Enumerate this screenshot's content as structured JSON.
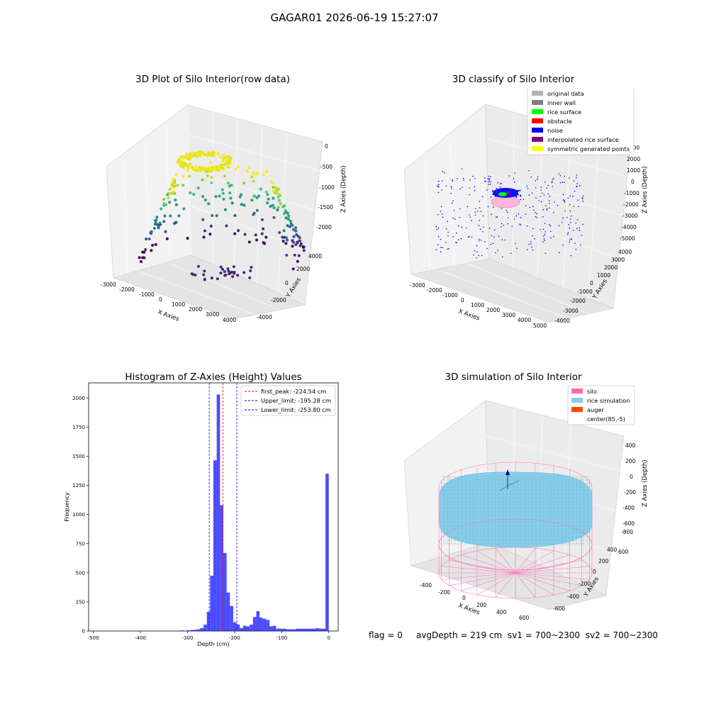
{
  "suptitle": "GAGAR01 2026-06-19 15:27:07",
  "panels": {
    "raw": {
      "title": "3D Plot of Silo Interior(row data)",
      "xlabel": "X Axies",
      "ylabel": "Y Axies",
      "zlabel": "Z Axies (Depth)",
      "xticks": [
        "-3000",
        "-2000",
        "-1000",
        "0",
        "1000",
        "2000",
        "3000",
        "4000"
      ],
      "yticks": [
        "-4000",
        "-2000",
        "0",
        "2000",
        "4000"
      ],
      "zticks": [
        "0",
        "-500",
        "-1000",
        "-1500",
        "-2000"
      ]
    },
    "classify": {
      "title": "3D classify of Silo Interior",
      "xlabel": "X Axies",
      "ylabel": "Y Axies",
      "zlabel": "Z Axies (Depth)",
      "xticks": [
        "-3000",
        "-2000",
        "-1000",
        "0",
        "1000",
        "2000",
        "3000",
        "4000",
        "5000"
      ],
      "yticks": [
        "-4000",
        "-3000",
        "-2000",
        "-1000",
        "0",
        "1000",
        "2000",
        "3000",
        "4000"
      ],
      "zticks": [
        "3000",
        "2000",
        "1000",
        "0",
        "-1000",
        "-2000",
        "-3000",
        "-4000",
        "-5000"
      ],
      "legend": [
        {
          "label": "original data",
          "color": "#b3b3b3"
        },
        {
          "label": "inner wall",
          "color": "#808080"
        },
        {
          "label": "rice surface",
          "color": "#00ff00"
        },
        {
          "label": "obstacle",
          "color": "#ff0000"
        },
        {
          "label": "noise",
          "color": "#0000ff"
        },
        {
          "label": "interpolated rice surface",
          "color": "#800080"
        },
        {
          "label": "symmetric generated points",
          "color": "#ffff00"
        }
      ]
    },
    "simulation": {
      "title": "3D simulation of Silo Interior",
      "xlabel": "X Axies",
      "ylabel": "Y Axies",
      "zlabel": "Z Axies (Depth)",
      "xticks": [
        "-400",
        "-200",
        "0",
        "200",
        "400",
        "600"
      ],
      "yticks": [
        "-600",
        "-400",
        "-200",
        "0",
        "200",
        "400",
        "600"
      ],
      "zticks": [
        "400",
        "200",
        "0",
        "-200",
        "-400",
        "-600",
        "-800"
      ],
      "legend": [
        {
          "label": "silo",
          "color": "#ff69b4"
        },
        {
          "label": "rice simulation",
          "color": "#87ceeb"
        },
        {
          "label": "auger",
          "color": "#ff4500"
        },
        {
          "label": "center(85,-5)",
          "color": "#ffffff"
        }
      ]
    }
  },
  "footer": {
    "flag": "flag = 0",
    "avg_depth": "avgDepth = 219 cm",
    "sv1": "sv1 = 700~2300",
    "sv2": "sv2 = 700~2300"
  },
  "chart_data": [
    {
      "type": "histogram",
      "title": "Histogram of Z-Axies (Height) Values",
      "xlabel": "Depth (cm)",
      "ylabel": "Frequency",
      "xlim": [
        -510,
        20
      ],
      "ylim": [
        0,
        2130
      ],
      "xticks": [
        -500,
        -400,
        -300,
        -200,
        -100,
        0
      ],
      "yticks": [
        0,
        250,
        500,
        750,
        1000,
        1250,
        1500,
        1750,
        2000
      ],
      "bar_color": "#0000ff",
      "bin_width": 7,
      "bins": [
        {
          "left": -315,
          "count": 5
        },
        {
          "left": -308,
          "count": 3
        },
        {
          "left": -301,
          "count": 6
        },
        {
          "left": -294,
          "count": 8
        },
        {
          "left": -287,
          "count": 10
        },
        {
          "left": -280,
          "count": 15
        },
        {
          "left": -273,
          "count": 25
        },
        {
          "left": -266,
          "count": 55
        },
        {
          "left": -259,
          "count": 165
        },
        {
          "left": -252,
          "count": 475
        },
        {
          "left": -245,
          "count": 1465
        },
        {
          "left": -238,
          "count": 2030
        },
        {
          "left": -231,
          "count": 1080
        },
        {
          "left": -224,
          "count": 670
        },
        {
          "left": -217,
          "count": 330
        },
        {
          "left": -210,
          "count": 215
        },
        {
          "left": -203,
          "count": 75
        },
        {
          "left": -196,
          "count": 55
        },
        {
          "left": -189,
          "count": 25
        },
        {
          "left": -182,
          "count": 45
        },
        {
          "left": -175,
          "count": 40
        },
        {
          "left": -168,
          "count": 55
        },
        {
          "left": -161,
          "count": 120
        },
        {
          "left": -154,
          "count": 170
        },
        {
          "left": -147,
          "count": 115
        },
        {
          "left": -140,
          "count": 105
        },
        {
          "left": -133,
          "count": 95
        },
        {
          "left": -126,
          "count": 40
        },
        {
          "left": -119,
          "count": 45
        },
        {
          "left": -112,
          "count": 20
        },
        {
          "left": -105,
          "count": 20
        },
        {
          "left": -98,
          "count": 20
        },
        {
          "left": -91,
          "count": 15
        },
        {
          "left": -84,
          "count": 15
        },
        {
          "left": -77,
          "count": 15
        },
        {
          "left": -70,
          "count": 20
        },
        {
          "left": -63,
          "count": 20
        },
        {
          "left": -56,
          "count": 20
        },
        {
          "left": -49,
          "count": 20
        },
        {
          "left": -42,
          "count": 20
        },
        {
          "left": -35,
          "count": 20
        },
        {
          "left": -28,
          "count": 25
        },
        {
          "left": -21,
          "count": 20
        },
        {
          "left": -14,
          "count": 20
        },
        {
          "left": -7,
          "count": 1350
        }
      ],
      "vlines": [
        {
          "label": "first_peak: -224.54 cm",
          "x": -224.54,
          "color": "#ff0000"
        },
        {
          "label": "Upper_limit: -195.28 cm",
          "x": -195.28,
          "color": "#0000ff"
        },
        {
          "label": "Lower_limit: -253.80 cm",
          "x": -253.8,
          "color": "#0000ff"
        }
      ],
      "legend_position": "top-right"
    }
  ]
}
